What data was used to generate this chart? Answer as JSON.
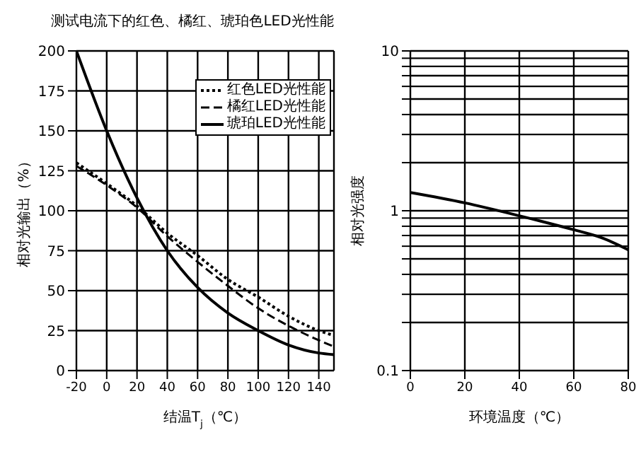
{
  "chart_data": [
    {
      "type": "line",
      "title": "测试电流下的红色、橘红、琥珀色LED光性能",
      "xlabel": "结温T$_{j}$（℃）",
      "ylabel": "相对光输出（%）",
      "x": [
        -20,
        0,
        20,
        40,
        60,
        80,
        100,
        120,
        140,
        150
      ],
      "xlim": [
        -20,
        150
      ],
      "xticks": [
        -20,
        0,
        20,
        40,
        60,
        80,
        100,
        120,
        140
      ],
      "ylim": [
        0,
        200
      ],
      "yticks": [
        0,
        25,
        50,
        75,
        100,
        125,
        150,
        175,
        200
      ],
      "grid": true,
      "legend": "top right",
      "series": [
        {
          "name": "红色LED光性能",
          "color": "#000000",
          "line_style": "dotted",
          "values": [
            130,
            117,
            103,
            86,
            72,
            57,
            46,
            34,
            25,
            22
          ]
        },
        {
          "name": "橘红LED光性能",
          "color": "#000000",
          "line_style": "dashed",
          "values": [
            128,
            116,
            102,
            84,
            68,
            53,
            39,
            28,
            19,
            15
          ]
        },
        {
          "name": "琥珀LED光性能",
          "color": "#000000",
          "line_style": "solid",
          "values": [
            200,
            150,
            108,
            75,
            52,
            36,
            25,
            16,
            11,
            10
          ]
        }
      ]
    },
    {
      "type": "line",
      "xlabel": "环境温度（℃）",
      "ylabel": "相对光强度",
      "x": [
        0,
        20,
        40,
        60,
        70,
        80
      ],
      "xlim": [
        0,
        80
      ],
      "xticks": [
        0,
        20,
        40,
        60,
        80
      ],
      "ylim": [
        0.1,
        10
      ],
      "log": "y",
      "grid": true,
      "yticks": [
        0.1,
        {
          "value": 0.2,
          "label": null
        },
        {
          "value": 0.3,
          "label": null
        },
        {
          "value": 0.4,
          "label": null
        },
        {
          "value": 0.5,
          "label": null
        },
        {
          "value": 0.6,
          "label": null
        },
        {
          "value": 0.7,
          "label": null
        },
        {
          "value": 0.8,
          "label": null
        },
        {
          "value": 0.9,
          "label": null
        },
        1,
        {
          "value": 2,
          "label": null
        },
        {
          "value": 3,
          "label": null
        },
        {
          "value": 4,
          "label": null
        },
        {
          "value": 5,
          "label": null
        },
        {
          "value": 6,
          "label": null
        },
        {
          "value": 7,
          "label": null
        },
        {
          "value": 8,
          "label": null
        },
        {
          "value": 9,
          "label": null
        },
        10
      ],
      "series": [
        {
          "color": "#000000",
          "line_style": "solid",
          "values": [
            1.3,
            1.12,
            0.93,
            0.76,
            0.68,
            0.57
          ]
        }
      ]
    }
  ]
}
